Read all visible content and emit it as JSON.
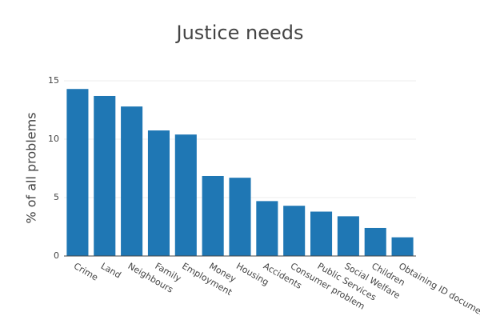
{
  "chart_data": {
    "type": "bar",
    "title": "Justice needs",
    "y_label": "% of all problems",
    "categories": [
      "Crime",
      "Land",
      "Neighbours",
      "Family",
      "Employment",
      "Money",
      "Housing",
      "Accidents",
      "Consumer problem",
      "Public Services",
      "Social Welfare",
      "Children",
      "Obtaining ID documen"
    ],
    "values": [
      14.3,
      13.7,
      12.8,
      10.75,
      10.4,
      6.85,
      6.7,
      4.7,
      4.3,
      3.8,
      3.4,
      2.4,
      1.6
    ],
    "color": "#1f77b4",
    "ylim": [
      0,
      15
    ],
    "yticks": [
      0,
      5,
      10,
      15
    ],
    "grid": true
  }
}
